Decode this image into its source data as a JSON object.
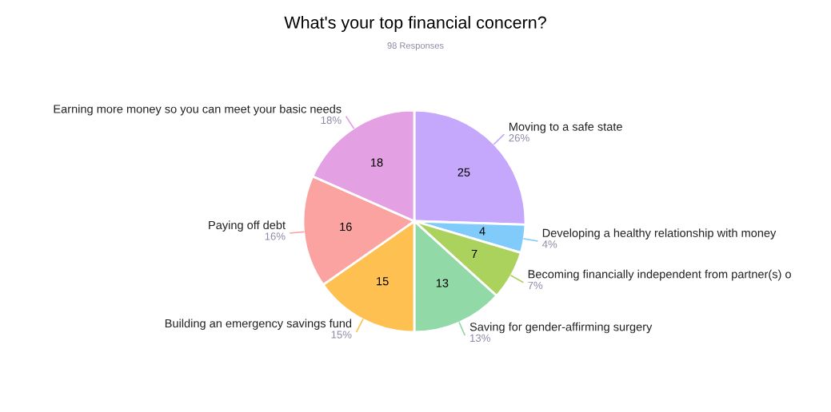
{
  "chart_data": {
    "type": "pie",
    "title": "What's your top financial concern?",
    "subtitle": "98 Responses",
    "categories": [
      "Moving to a safe state",
      "Developing a healthy relationship with money",
      "Becoming financially independent from partner(s) o",
      "Saving for gender-affirming surgery",
      "Building an emergency savings fund",
      "Paying off debt",
      "Earning more money so you can meet your basic needs"
    ],
    "values": [
      25,
      4,
      7,
      13,
      15,
      16,
      18
    ],
    "colors": [
      "#c5a8fb",
      "#80cbfa",
      "#acd25e",
      "#92d9a8",
      "#fec051",
      "#fba3a0",
      "#e3a0e3"
    ],
    "value_labels": [
      "25",
      "4",
      "7",
      "13",
      "15",
      "16",
      "18"
    ],
    "annotations": [
      {
        "text": "26%",
        "x": "Moving to a safe state"
      },
      {
        "text": "4%",
        "x": "Developing a healthy relationship with money"
      },
      {
        "text": "7%",
        "x": "Becoming financially independent from partner(s) o"
      },
      {
        "text": "13%",
        "x": "Saving for gender-affirming surgery"
      },
      {
        "text": "15%",
        "x": "Building an emergency savings fund"
      },
      {
        "text": "16%",
        "x": "Paying off debt"
      },
      {
        "text": "18%",
        "x": "Earning more money so you can meet your basic needs"
      }
    ],
    "legend": false
  }
}
